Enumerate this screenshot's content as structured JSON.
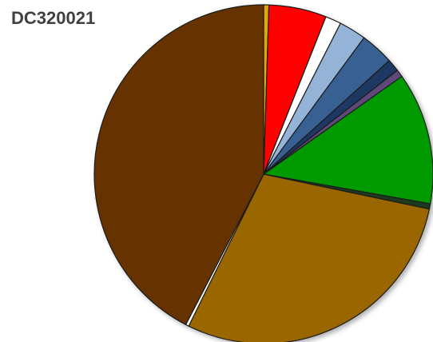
{
  "chart_data": {
    "type": "pie",
    "title": "DC320021",
    "values": [
      0.5,
      5.5,
      1.5,
      2.6,
      3.2,
      1.2,
      0.7,
      12.6,
      0.5,
      29.0,
      0.3,
      42.4
    ],
    "colors": [
      "#e0a800",
      "#ff0000",
      "#ffffff",
      "#95b3d7",
      "#376092",
      "#1f3864",
      "#5f497a",
      "#009900",
      "#1e3a1e",
      "#996600",
      "#ffffff",
      "#663300"
    ]
  }
}
